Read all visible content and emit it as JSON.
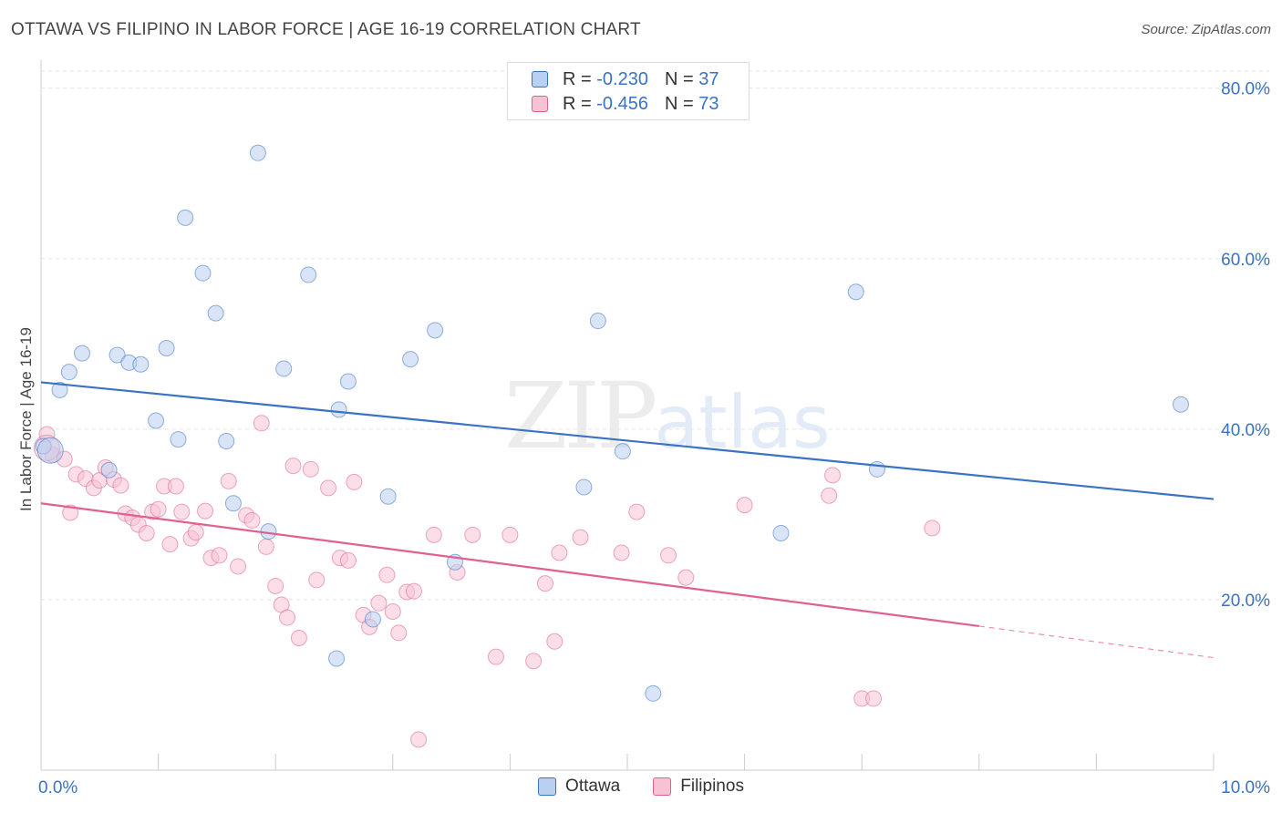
{
  "title": "OTTAWA VS FILIPINO IN LABOR FORCE | AGE 16-19 CORRELATION CHART",
  "source": "Source: ZipAtlas.com",
  "watermark": {
    "zip": "ZIP",
    "atlas": "atlas"
  },
  "colors": {
    "ottawa": "#3a72c4",
    "ottawa_fill": "#b9d0f0",
    "filipinos": "#e06090",
    "filipinos_fill": "#f7c2d4"
  },
  "legend": {
    "rows": [
      {
        "r_label": "R =",
        "r_value": "-0.230",
        "n_label": "N =",
        "n_value": "37"
      },
      {
        "r_label": "R =",
        "r_value": "-0.456",
        "n_label": "N =",
        "n_value": "73"
      }
    ]
  },
  "bottom_legend": {
    "ottawa": "Ottawa",
    "filipinos": "Filipinos"
  },
  "chart_data": {
    "type": "scatter",
    "title": "OTTAWA VS FILIPINO IN LABOR FORCE | AGE 16-19 CORRELATION CHART",
    "xlabel": "",
    "ylabel": "In Labor Force | Age 16-19",
    "xlim": [
      0,
      10
    ],
    "ylim": [
      0,
      82
    ],
    "x_tick_labels": [
      "0.0%",
      "10.0%"
    ],
    "y_ticks": [
      20,
      40,
      60,
      80
    ],
    "y_tick_labels": [
      "20.0%",
      "40.0%",
      "60.0%",
      "80.0%"
    ],
    "series": [
      {
        "name": "Ottawa",
        "r": -0.23,
        "n": 37,
        "trend": {
          "x0": 0,
          "y0": 45.5,
          "x1": 10,
          "y1": 31.8
        },
        "points": [
          [
            1.85,
            72.4
          ],
          [
            1.23,
            64.8
          ],
          [
            1.38,
            58.3
          ],
          [
            2.28,
            58.1
          ],
          [
            6.95,
            56.1
          ],
          [
            1.49,
            53.6
          ],
          [
            3.36,
            51.6
          ],
          [
            4.75,
            52.7
          ],
          [
            0.35,
            48.9
          ],
          [
            0.65,
            48.7
          ],
          [
            1.07,
            49.5
          ],
          [
            0.75,
            47.8
          ],
          [
            0.85,
            47.6
          ],
          [
            3.15,
            48.2
          ],
          [
            0.24,
            46.7
          ],
          [
            2.07,
            47.1
          ],
          [
            2.62,
            45.6
          ],
          [
            0.16,
            44.6
          ],
          [
            2.54,
            42.3
          ],
          [
            9.72,
            42.9
          ],
          [
            0.98,
            41.0
          ],
          [
            1.17,
            38.8
          ],
          [
            1.58,
            38.6
          ],
          [
            0.02,
            38.0
          ],
          [
            4.96,
            37.4
          ],
          [
            0.58,
            35.2
          ],
          [
            7.13,
            35.3
          ],
          [
            4.63,
            33.2
          ],
          [
            2.96,
            32.1
          ],
          [
            1.64,
            31.3
          ],
          [
            1.94,
            28.0
          ],
          [
            3.53,
            24.4
          ],
          [
            6.31,
            27.8
          ],
          [
            2.83,
            17.7
          ],
          [
            2.52,
            13.1
          ],
          [
            5.22,
            9.0
          ],
          [
            0.08,
            37.5
          ]
        ]
      },
      {
        "name": "Filipinos",
        "r": -0.456,
        "n": 73,
        "trend": {
          "x0": 0,
          "y0": 31.3,
          "x1": 8.0,
          "y1": 16.9,
          "dash_x1": 10,
          "dash_y1": 13.2
        },
        "points": [
          [
            0.05,
            39.4
          ],
          [
            0.1,
            37.0
          ],
          [
            0.2,
            36.5
          ],
          [
            0.25,
            30.2
          ],
          [
            0.3,
            34.7
          ],
          [
            0.38,
            34.2
          ],
          [
            0.45,
            33.1
          ],
          [
            0.5,
            34.0
          ],
          [
            0.55,
            35.5
          ],
          [
            0.62,
            34.1
          ],
          [
            0.68,
            33.4
          ],
          [
            0.72,
            30.1
          ],
          [
            0.78,
            29.6
          ],
          [
            0.83,
            28.8
          ],
          [
            0.9,
            27.8
          ],
          [
            0.95,
            30.3
          ],
          [
            1.0,
            30.6
          ],
          [
            1.05,
            33.3
          ],
          [
            1.1,
            26.5
          ],
          [
            1.15,
            33.3
          ],
          [
            1.2,
            30.3
          ],
          [
            1.28,
            27.2
          ],
          [
            1.32,
            27.9
          ],
          [
            1.4,
            30.4
          ],
          [
            1.45,
            24.9
          ],
          [
            1.52,
            25.2
          ],
          [
            1.6,
            33.9
          ],
          [
            1.68,
            23.9
          ],
          [
            1.75,
            29.9
          ],
          [
            1.8,
            29.3
          ],
          [
            1.88,
            40.7
          ],
          [
            1.92,
            26.2
          ],
          [
            2.0,
            21.6
          ],
          [
            2.05,
            19.4
          ],
          [
            2.1,
            17.9
          ],
          [
            2.15,
            35.7
          ],
          [
            2.2,
            15.5
          ],
          [
            2.3,
            35.3
          ],
          [
            2.35,
            22.3
          ],
          [
            2.45,
            33.1
          ],
          [
            2.55,
            24.9
          ],
          [
            2.62,
            24.6
          ],
          [
            2.67,
            33.8
          ],
          [
            2.75,
            18.2
          ],
          [
            2.8,
            16.8
          ],
          [
            2.88,
            19.6
          ],
          [
            2.95,
            22.9
          ],
          [
            3.0,
            18.6
          ],
          [
            3.05,
            16.1
          ],
          [
            3.12,
            20.9
          ],
          [
            3.18,
            21.0
          ],
          [
            3.22,
            3.6
          ],
          [
            3.35,
            27.6
          ],
          [
            3.55,
            23.2
          ],
          [
            3.68,
            27.6
          ],
          [
            3.88,
            13.3
          ],
          [
            4.0,
            27.6
          ],
          [
            4.2,
            12.8
          ],
          [
            4.3,
            21.9
          ],
          [
            4.38,
            15.1
          ],
          [
            4.42,
            25.5
          ],
          [
            4.6,
            27.3
          ],
          [
            4.95,
            25.5
          ],
          [
            5.08,
            30.3
          ],
          [
            5.35,
            25.2
          ],
          [
            5.5,
            22.6
          ],
          [
            6.0,
            31.1
          ],
          [
            6.72,
            32.2
          ],
          [
            6.75,
            34.6
          ],
          [
            7.0,
            8.4
          ],
          [
            7.1,
            8.4
          ],
          [
            7.6,
            28.4
          ],
          [
            0.05,
            37.8
          ]
        ]
      }
    ]
  }
}
